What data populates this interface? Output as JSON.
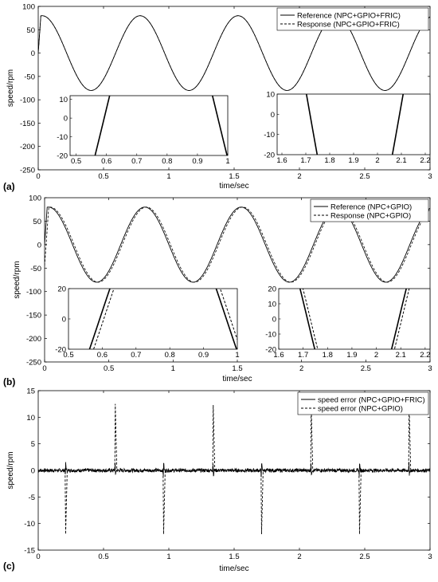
{
  "chart_data": [
    {
      "panel_label": "(a)",
      "type": "line",
      "xlabel": "time/sec",
      "ylabel": "speed/rpm",
      "xlim": [
        0,
        3
      ],
      "ylim": [
        -250,
        100
      ],
      "xticks": [
        "0",
        "0.5",
        "1",
        "1.5",
        "2",
        "2.5",
        "3"
      ],
      "yticks": [
        "-250",
        "-200",
        "-150",
        "-100",
        "-50",
        "0",
        "50",
        "100"
      ],
      "legend_position": "top-right",
      "signal": {
        "amplitude": 80,
        "period_sec": 0.75,
        "phase_deg": 0,
        "startup_rise_sec": 0.02
      },
      "series": [
        {
          "name": "Reference (NPC+GPIO+FRIC)",
          "style": "solid",
          "color": "#000000"
        },
        {
          "name": "Response (NPC+GPIO+FRIC)",
          "style": "dashed",
          "color": "#000000"
        }
      ],
      "insets": [
        {
          "xlim": [
            0.48,
            1.0
          ],
          "ylim": [
            -20,
            12
          ],
          "xticks": [
            "0.5",
            "0.6",
            "0.7",
            "0.8",
            "0.9",
            "1"
          ],
          "yticks": [
            "-20",
            "-10",
            "0",
            "10"
          ],
          "response_lag_sec": 0.0,
          "response_glitch": 0.0
        },
        {
          "xlim": [
            1.58,
            2.22
          ],
          "ylim": [
            -20,
            10
          ],
          "xticks": [
            "1.6",
            "1.7",
            "1.8",
            "1.9",
            "2",
            "2.1",
            "2.2"
          ],
          "yticks": [
            "-20",
            "-10",
            "0",
            "10"
          ],
          "response_lag_sec": 0.0,
          "response_glitch": 0.0
        }
      ]
    },
    {
      "panel_label": "(b)",
      "type": "line",
      "xlabel": "time/sec",
      "ylabel": "speed/rpm",
      "xlim": [
        0,
        3
      ],
      "ylim": [
        -250,
        100
      ],
      "xticks": [
        "0",
        "0.5",
        "1",
        "1.5",
        "2",
        "2.5",
        "3"
      ],
      "yticks": [
        "-250",
        "-200",
        "-150",
        "-100",
        "-50",
        "0",
        "50",
        "100"
      ],
      "legend_position": "top-right",
      "signal": {
        "amplitude": 80,
        "period_sec": 0.75,
        "phase_deg": 0,
        "startup_rise_sec": 0.02
      },
      "series": [
        {
          "name": "Reference (NPC+GPIO)",
          "style": "solid",
          "color": "#000000"
        },
        {
          "name": "Response (NPC+GPIO)",
          "style": "dashed",
          "color": "#000000"
        }
      ],
      "insets": [
        {
          "xlim": [
            0.5,
            1.0
          ],
          "ylim": [
            -20,
            20
          ],
          "xticks": [
            "0.5",
            "0.6",
            "0.7",
            "0.8",
            "0.9",
            "1"
          ],
          "yticks": [
            "-20",
            "0",
            "20"
          ],
          "response_lag_sec": 0.012,
          "response_glitch": 8
        },
        {
          "xlim": [
            1.6,
            2.22
          ],
          "ylim": [
            -20,
            20
          ],
          "xticks": [
            "1.6",
            "1.7",
            "1.8",
            "1.9",
            "2",
            "2.1",
            "2.2"
          ],
          "yticks": [
            "-20",
            "-10",
            "0",
            "10",
            "20"
          ],
          "response_lag_sec": 0.012,
          "response_glitch": 8
        }
      ]
    },
    {
      "panel_label": "(c)",
      "type": "line",
      "xlabel": "time/sec",
      "ylabel": "speed/rpm",
      "xlim": [
        0,
        3
      ],
      "ylim": [
        -15,
        15
      ],
      "xticks": [
        "0",
        "0.5",
        "1",
        "1.5",
        "2",
        "2.5",
        "3"
      ],
      "yticks": [
        "-15",
        "-10",
        "-5",
        "0",
        "5",
        "10",
        "15"
      ],
      "legend_position": "top-right",
      "series": [
        {
          "name": "speed error (NPC+GPIO+FRIC)",
          "style": "solid",
          "color": "#000000",
          "spike_magnitude": 1.5,
          "noise": 0.35
        },
        {
          "name": "speed error (NPC+GPIO)",
          "style": "dashed",
          "color": "#000000"
        }
      ],
      "error_spikes": [
        {
          "t": 0.21,
          "value": -12
        },
        {
          "t": 0.59,
          "value": 12.5
        },
        {
          "t": 0.96,
          "value": -12
        },
        {
          "t": 1.34,
          "value": 12.3
        },
        {
          "t": 1.71,
          "value": -12
        },
        {
          "t": 2.09,
          "value": 12.4
        },
        {
          "t": 2.46,
          "value": -12
        },
        {
          "t": 2.84,
          "value": 12.4
        }
      ]
    }
  ]
}
